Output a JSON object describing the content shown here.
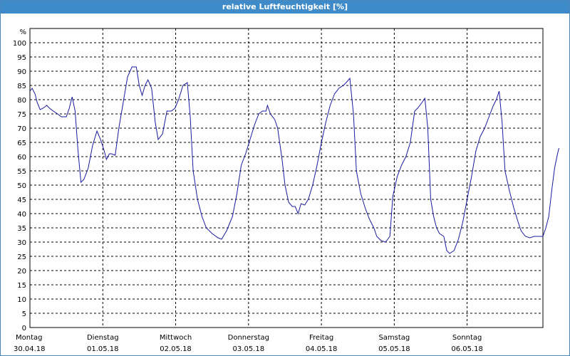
{
  "window": {
    "title": "relative Luftfeuchtigkeit [%]"
  },
  "chart_data": {
    "type": "line",
    "title": "relative Luftfeuchtigkeit [%]",
    "y_unit_label": "%",
    "ylim": [
      0,
      105
    ],
    "y_ticks": [
      0,
      5,
      10,
      15,
      20,
      25,
      30,
      35,
      40,
      45,
      50,
      55,
      60,
      65,
      70,
      75,
      80,
      85,
      90,
      95,
      100
    ],
    "xlim": [
      0,
      7
    ],
    "x_ticks": [
      {
        "day": "Montag",
        "date": "30.04.18"
      },
      {
        "day": "Dienstag",
        "date": "01.05.18"
      },
      {
        "day": "Mittwoch",
        "date": "02.05.18"
      },
      {
        "day": "Donnerstag",
        "date": "03.05.18"
      },
      {
        "day": "Freitag",
        "date": "04.05.18"
      },
      {
        "day": "Samstag",
        "date": "05.05.18"
      },
      {
        "day": "Sonntag",
        "date": "06.05.18"
      }
    ],
    "grid": true,
    "line_color": "#1a1aa0",
    "series": [
      {
        "name": "",
        "points": [
          [
            0.0,
            83
          ],
          [
            0.03,
            84
          ],
          [
            0.07,
            82
          ],
          [
            0.1,
            79
          ],
          [
            0.14,
            76.5
          ],
          [
            0.18,
            77
          ],
          [
            0.23,
            78
          ],
          [
            0.27,
            77
          ],
          [
            0.32,
            76
          ],
          [
            0.38,
            75
          ],
          [
            0.43,
            74
          ],
          [
            0.5,
            74
          ],
          [
            0.54,
            77
          ],
          [
            0.58,
            81
          ],
          [
            0.62,
            76
          ],
          [
            0.66,
            62
          ],
          [
            0.7,
            51
          ],
          [
            0.74,
            52
          ],
          [
            0.8,
            56
          ],
          [
            0.86,
            64
          ],
          [
            0.92,
            69
          ],
          [
            0.97,
            66
          ],
          [
            1.02,
            62
          ],
          [
            1.05,
            59
          ],
          [
            1.09,
            61
          ],
          [
            1.12,
            61
          ],
          [
            1.17,
            60.5
          ],
          [
            1.22,
            70
          ],
          [
            1.28,
            79
          ],
          [
            1.34,
            88
          ],
          [
            1.4,
            91.5
          ],
          [
            1.46,
            91.5
          ],
          [
            1.5,
            85
          ],
          [
            1.54,
            81.5
          ],
          [
            1.58,
            85
          ],
          [
            1.62,
            87
          ],
          [
            1.67,
            84
          ],
          [
            1.72,
            72
          ],
          [
            1.76,
            66
          ],
          [
            1.82,
            68
          ],
          [
            1.88,
            76
          ],
          [
            1.94,
            76
          ],
          [
            1.99,
            77
          ],
          [
            2.04,
            80
          ],
          [
            2.1,
            85
          ],
          [
            2.16,
            86
          ],
          [
            2.2,
            74
          ],
          [
            2.24,
            55
          ],
          [
            2.3,
            45
          ],
          [
            2.36,
            39
          ],
          [
            2.42,
            35
          ],
          [
            2.5,
            33
          ],
          [
            2.58,
            31.5
          ],
          [
            2.63,
            31
          ],
          [
            2.7,
            34
          ],
          [
            2.78,
            39
          ],
          [
            2.84,
            47
          ],
          [
            2.9,
            57
          ],
          [
            2.96,
            61
          ],
          [
            3.02,
            66
          ],
          [
            3.08,
            71
          ],
          [
            3.14,
            75
          ],
          [
            3.19,
            76
          ],
          [
            3.24,
            76
          ],
          [
            3.26,
            78
          ],
          [
            3.3,
            75
          ],
          [
            3.36,
            73
          ],
          [
            3.4,
            70
          ],
          [
            3.46,
            59
          ],
          [
            3.5,
            50
          ],
          [
            3.55,
            44
          ],
          [
            3.6,
            42.5
          ],
          [
            3.64,
            42.5
          ],
          [
            3.68,
            40
          ],
          [
            3.72,
            43.5
          ],
          [
            3.77,
            43
          ],
          [
            3.82,
            45
          ],
          [
            3.88,
            50
          ],
          [
            3.94,
            57
          ],
          [
            4.0,
            65
          ],
          [
            4.06,
            72
          ],
          [
            4.12,
            78
          ],
          [
            4.18,
            82
          ],
          [
            4.24,
            84
          ],
          [
            4.3,
            85
          ],
          [
            4.34,
            86
          ],
          [
            4.39,
            87.5
          ],
          [
            4.44,
            75
          ],
          [
            4.48,
            55
          ],
          [
            4.54,
            47
          ],
          [
            4.6,
            42
          ],
          [
            4.66,
            38
          ],
          [
            4.72,
            35
          ],
          [
            4.76,
            32
          ],
          [
            4.82,
            30.5
          ],
          [
            4.88,
            30
          ],
          [
            4.94,
            32
          ],
          [
            4.98,
            46
          ],
          [
            5.04,
            53
          ],
          [
            5.1,
            57
          ],
          [
            5.16,
            60
          ],
          [
            5.22,
            65
          ],
          [
            5.28,
            76
          ],
          [
            5.32,
            77
          ],
          [
            5.38,
            79
          ],
          [
            5.42,
            80.5
          ],
          [
            5.46,
            70
          ],
          [
            5.5,
            45
          ],
          [
            5.54,
            39
          ],
          [
            5.58,
            35
          ],
          [
            5.62,
            33
          ],
          [
            5.68,
            32
          ],
          [
            5.72,
            27
          ],
          [
            5.76,
            26
          ],
          [
            5.82,
            27
          ],
          [
            5.88,
            31
          ],
          [
            5.94,
            37
          ],
          [
            6.0,
            45
          ],
          [
            6.06,
            53
          ],
          [
            6.12,
            62
          ],
          [
            6.18,
            67
          ],
          [
            6.24,
            70
          ],
          [
            6.3,
            74
          ],
          [
            6.36,
            78
          ],
          [
            6.4,
            80
          ],
          [
            6.44,
            83
          ],
          [
            6.48,
            72
          ],
          [
            6.52,
            55
          ],
          [
            6.58,
            48
          ],
          [
            6.64,
            42
          ],
          [
            6.7,
            37
          ],
          [
            6.74,
            34
          ],
          [
            6.8,
            32
          ],
          [
            6.86,
            31.5
          ],
          [
            6.92,
            32
          ],
          [
            6.98,
            32
          ],
          [
            7.04,
            32
          ],
          [
            7.08,
            35
          ],
          [
            7.12,
            39
          ],
          [
            7.16,
            48
          ],
          [
            7.2,
            56
          ],
          [
            7.24,
            61
          ],
          [
            7.26,
            63
          ]
        ]
      }
    ]
  }
}
